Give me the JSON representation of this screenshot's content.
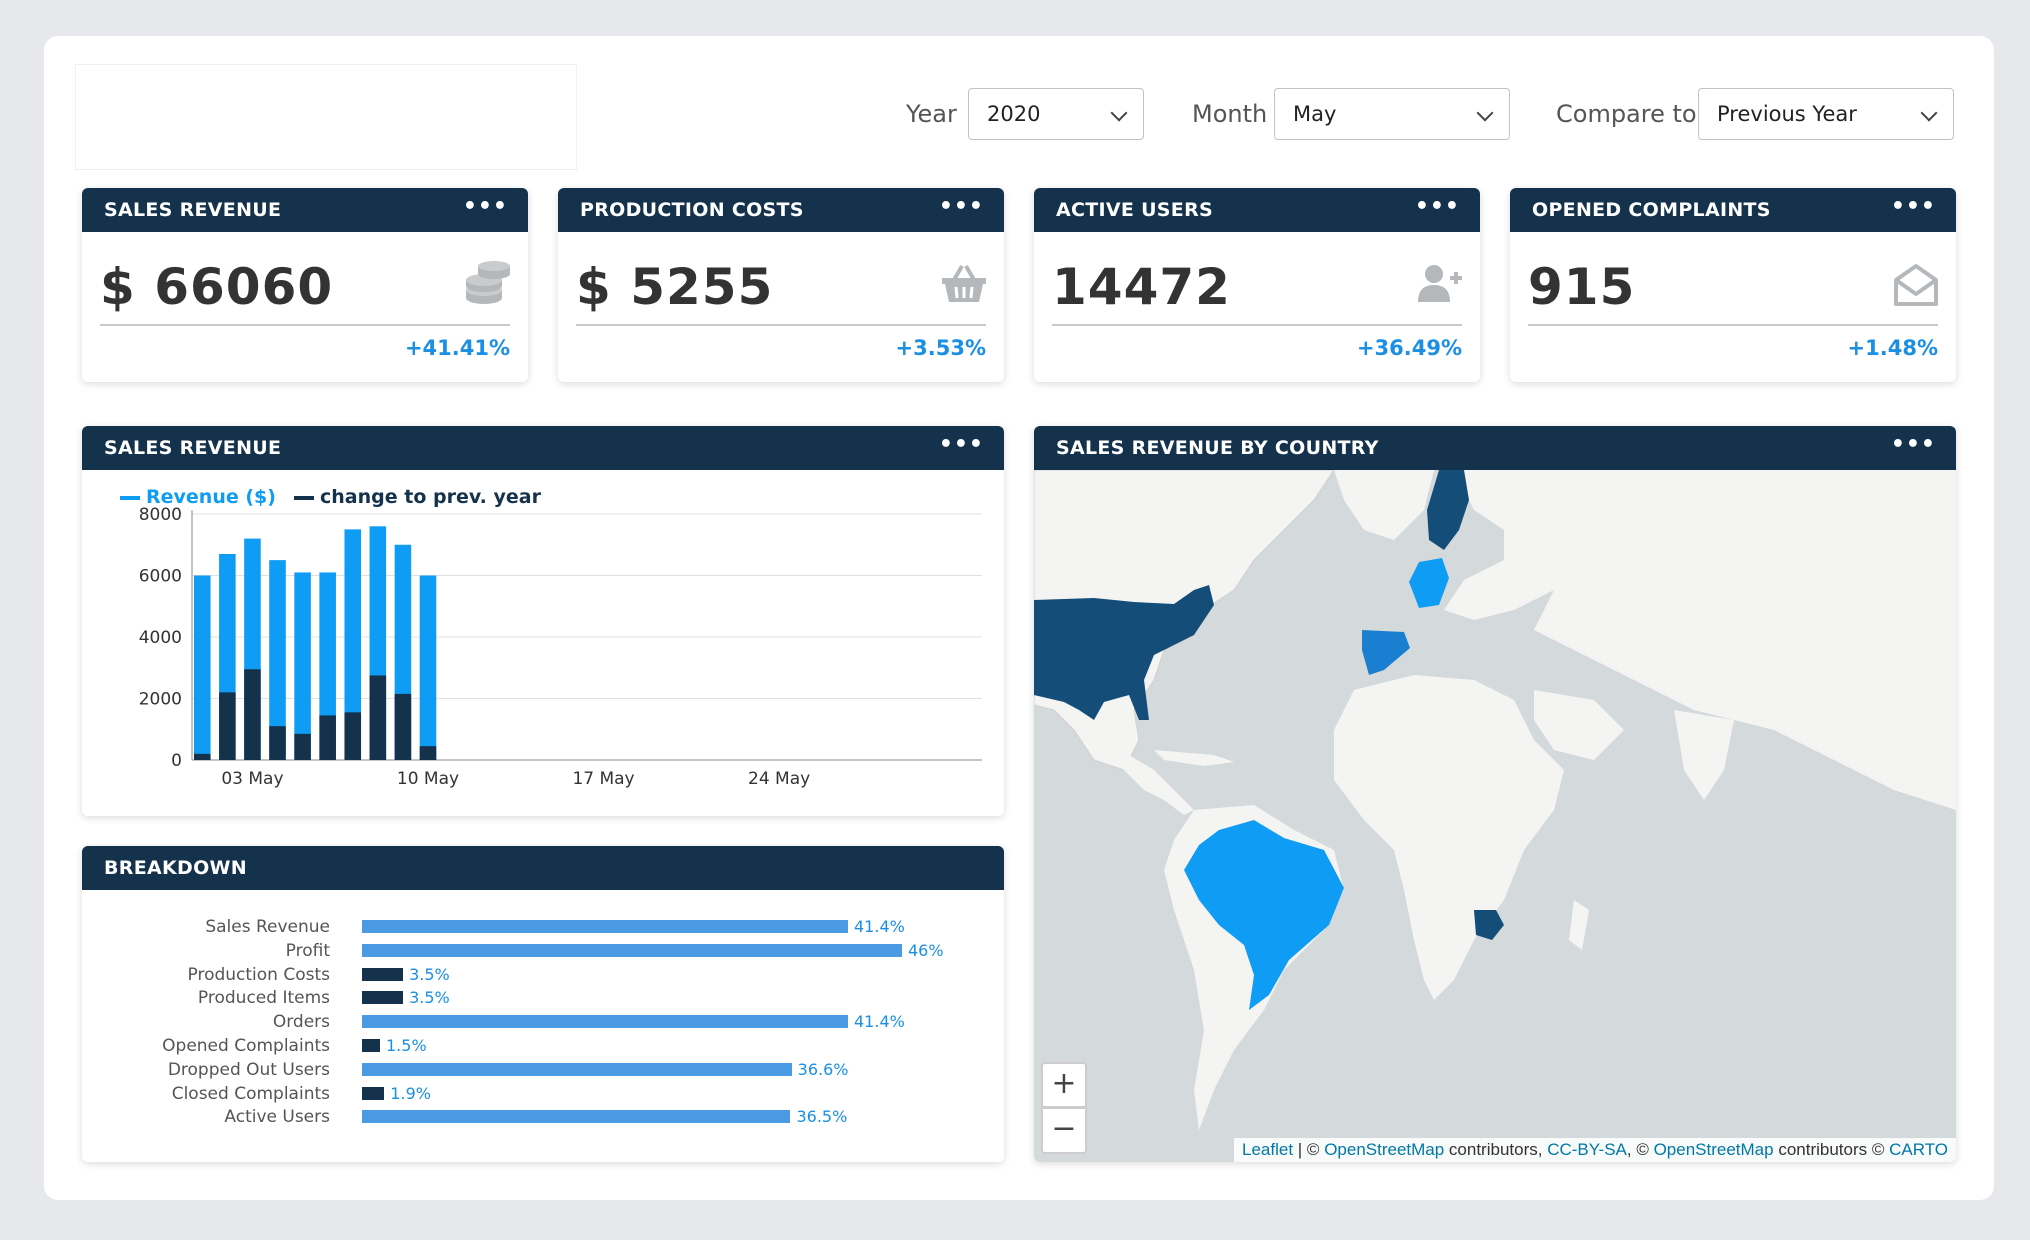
{
  "filters": {
    "year_label": "Year",
    "year_value": "2020",
    "month_label": "Month",
    "month_value": "May",
    "compare_label": "Compare to",
    "compare_value": "Previous Year"
  },
  "kpis": [
    {
      "title": "SALES REVENUE",
      "value": "$ 66060",
      "change": "+41.41%",
      "icon": "coins-icon"
    },
    {
      "title": "PRODUCTION COSTS",
      "value": "$ 5255",
      "change": "+3.53%",
      "icon": "basket-icon"
    },
    {
      "title": "ACTIVE USERS",
      "value": "14472",
      "change": "+36.49%",
      "icon": "add-user-icon"
    },
    {
      "title": "OPENED COMPLAINTS",
      "value": "915",
      "change": "+1.48%",
      "icon": "envelope-open-icon"
    }
  ],
  "menu_dots": "•••",
  "revenue_chart": {
    "title": "SALES REVENUE",
    "legend": [
      "Revenue ($)",
      "change to prev. year"
    ],
    "colors": {
      "revenue": "#0f9cf5",
      "change": "#14324b"
    }
  },
  "chart_data": [
    {
      "type": "bar",
      "title": "SALES REVENUE",
      "x": [
        "01 May",
        "02 May",
        "03 May",
        "04 May",
        "05 May",
        "06 May",
        "07 May",
        "08 May",
        "09 May",
        "10 May",
        "11 May"
      ],
      "series": [
        {
          "name": "Revenue ($)",
          "values": [
            6000,
            6700,
            7200,
            6500,
            6100,
            6100,
            7500,
            7600,
            7000,
            6000,
            0
          ]
        },
        {
          "name": "change to prev. year",
          "values": [
            200,
            2200,
            2950,
            1100,
            850,
            1450,
            1550,
            2750,
            2150,
            450,
            0
          ]
        }
      ],
      "ylim": [
        0,
        8000
      ],
      "yticks": [
        "0",
        "2000",
        "4000",
        "6000",
        "8000"
      ],
      "xticks": [
        "03 May",
        "10 May",
        "17 May",
        "24 May"
      ],
      "grid": true,
      "legend_position": "top-left"
    },
    {
      "type": "bar",
      "title": "BREAKDOWN",
      "orientation": "horizontal",
      "categories": [
        "Sales Revenue",
        "Profit",
        "Production Costs",
        "Produced Items",
        "Orders",
        "Opened Complaints",
        "Dropped Out Users",
        "Closed Complaints",
        "Active Users"
      ],
      "values": [
        41.4,
        46,
        3.5,
        3.5,
        41.4,
        1.5,
        36.6,
        1.9,
        36.5
      ],
      "labels": [
        "41.4%",
        "46%",
        "3.5%",
        "3.5%",
        "41.4%",
        "1.5%",
        "36.6%",
        "1.9%",
        "36.5%"
      ]
    }
  ],
  "breakdown": {
    "title": "BREAKDOWN",
    "colors": {
      "large": "#4a9be3",
      "small": "#14324b"
    }
  },
  "map": {
    "title": "SALES REVENUE BY COUNTRY",
    "zoom_in": "+",
    "zoom_out": "−",
    "attribution": {
      "leaflet": "Leaflet",
      "sep1": " | © ",
      "osm1": "OpenStreetMap",
      "contrib1": " contributors, ",
      "ccbysa": "CC-BY-SA",
      "sep2": ", © ",
      "osm2": "OpenStreetMap",
      "contrib2": " contributors © ",
      "carto": "CARTO"
    },
    "colors": {
      "water": "#d4dadc",
      "land": "#f4f4f2",
      "dark": "#144d78",
      "mid": "#1a7fd0",
      "bright": "#0f9cf5"
    }
  }
}
